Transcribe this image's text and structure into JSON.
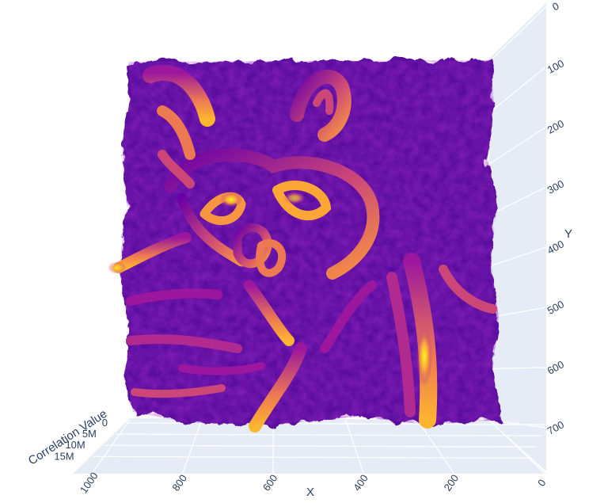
{
  "chart_data": {
    "type": "surface",
    "title": "",
    "colorscale": "plasma",
    "colors": {
      "low": "#3b049a",
      "mid": "#8a0da8",
      "high": "#f8a13a",
      "peak": "#f0f921",
      "pane": "#e5ecf6",
      "grid": "#ffffff",
      "text": "#2a3f5f"
    },
    "x_axis": {
      "title": "X",
      "range": [
        0,
        1000
      ],
      "ticks": [
        "1000",
        "800",
        "600",
        "400",
        "200",
        "0"
      ]
    },
    "y_axis": {
      "title": "Y",
      "range": [
        0,
        700
      ],
      "ticks": [
        "0",
        "100",
        "200",
        "300",
        "400",
        "500",
        "600",
        "700"
      ]
    },
    "z_axis": {
      "title": "Correlation Value",
      "range": [
        0,
        17000000
      ],
      "ticks": [
        "0",
        "5M",
        "10M",
        "15M"
      ]
    },
    "grid": true,
    "legend": "none"
  }
}
